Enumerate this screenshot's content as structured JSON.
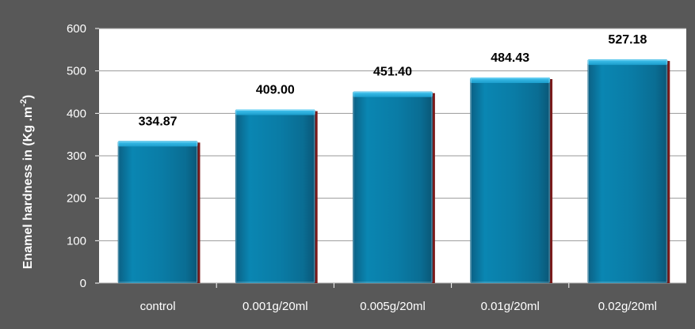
{
  "chart_data": {
    "type": "bar",
    "categories": [
      "control",
      "0.001g/20ml",
      "0.005g/20ml",
      "0.01g/20ml",
      "0.02g/20ml"
    ],
    "values": [
      334.87,
      409.0,
      451.4,
      484.43,
      527.18
    ],
    "value_labels": [
      "334.87",
      "409.00",
      "451.40",
      "484.43",
      "527.18"
    ],
    "title": "",
    "xlabel": "",
    "ylabel": {
      "prefix": "Enamel hardness in (Kg .m",
      "sup": "-2",
      "suffix": ")"
    },
    "ylim": [
      0,
      600
    ],
    "yticks": [
      0,
      100,
      200,
      300,
      400,
      500,
      600
    ],
    "grid": true,
    "legend": "none",
    "colors": {
      "background": "#585858",
      "plot_area": "#ffffff",
      "bar_fill": "#0a7ca6",
      "bar_top": "#2fb2e0",
      "bar_shadow": "#7a1a1a",
      "gridline": "#9a9a9a",
      "tick_text": "#ffffff",
      "value_text": "#000000"
    }
  }
}
